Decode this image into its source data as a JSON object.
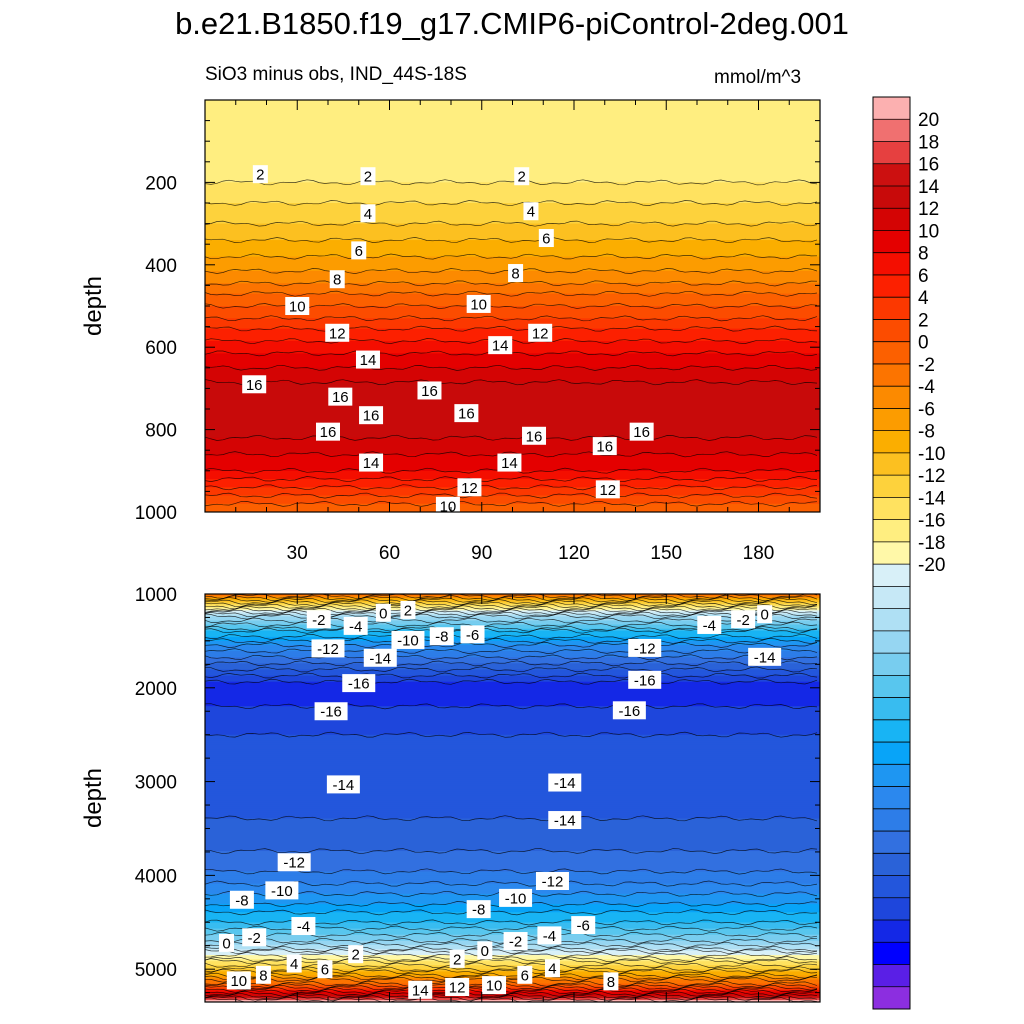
{
  "header": {
    "title": "b.e21.B1850.f19_g17.CMIP6-piControl-2deg.001",
    "subtitle": "SiO3 minus obs, IND_44S-18S",
    "units": "mmol/m^3"
  },
  "chart_data": [
    {
      "type": "contour",
      "panel": "upper",
      "ylabel": "depth",
      "xlim": [
        0,
        200
      ],
      "ylim": [
        0,
        1000
      ],
      "y_inverted": true,
      "x_ticks": [
        30,
        60,
        90,
        120,
        150,
        180
      ],
      "y_ticks": [
        200,
        400,
        600,
        800,
        1000
      ],
      "profile": [
        [
          0,
          1
        ],
        [
          150,
          1.5
        ],
        [
          200,
          2
        ],
        [
          300,
          4
        ],
        [
          400,
          6.5
        ],
        [
          500,
          10
        ],
        [
          600,
          13.5
        ],
        [
          700,
          16.5
        ],
        [
          760,
          17
        ],
        [
          820,
          16
        ],
        [
          900,
          14
        ],
        [
          960,
          11
        ],
        [
          1000,
          9
        ]
      ],
      "contour_labels": [
        {
          "x": 18,
          "y": 180,
          "text": "2"
        },
        {
          "x": 53,
          "y": 185,
          "text": "2"
        },
        {
          "x": 103,
          "y": 185,
          "text": "2"
        },
        {
          "x": 53,
          "y": 275,
          "text": "4"
        },
        {
          "x": 106,
          "y": 270,
          "text": "4"
        },
        {
          "x": 50,
          "y": 365,
          "text": "6"
        },
        {
          "x": 111,
          "y": 335,
          "text": "6"
        },
        {
          "x": 43,
          "y": 435,
          "text": "8"
        },
        {
          "x": 101,
          "y": 420,
          "text": "8"
        },
        {
          "x": 30,
          "y": 500,
          "text": "10"
        },
        {
          "x": 89,
          "y": 495,
          "text": "10"
        },
        {
          "x": 43,
          "y": 565,
          "text": "12"
        },
        {
          "x": 109,
          "y": 565,
          "text": "12"
        },
        {
          "x": 53,
          "y": 630,
          "text": "14"
        },
        {
          "x": 96,
          "y": 595,
          "text": "14"
        },
        {
          "x": 16,
          "y": 690,
          "text": "16"
        },
        {
          "x": 44,
          "y": 720,
          "text": "16"
        },
        {
          "x": 54,
          "y": 765,
          "text": "16"
        },
        {
          "x": 73,
          "y": 705,
          "text": "16"
        },
        {
          "x": 85,
          "y": 760,
          "text": "16"
        },
        {
          "x": 107,
          "y": 815,
          "text": "16"
        },
        {
          "x": 130,
          "y": 840,
          "text": "16"
        },
        {
          "x": 142,
          "y": 805,
          "text": "16"
        },
        {
          "x": 40,
          "y": 805,
          "text": "16"
        },
        {
          "x": 54,
          "y": 880,
          "text": "14"
        },
        {
          "x": 99,
          "y": 880,
          "text": "14"
        },
        {
          "x": 86,
          "y": 940,
          "text": "12"
        },
        {
          "x": 131,
          "y": 945,
          "text": "12"
        },
        {
          "x": 79,
          "y": 985,
          "text": "10"
        }
      ]
    },
    {
      "type": "contour",
      "panel": "lower",
      "ylabel": "depth",
      "xlim": [
        0,
        200
      ],
      "ylim": [
        1000,
        5350
      ],
      "y_inverted": true,
      "y_ticks": [
        1000,
        2000,
        3000,
        4000,
        5000
      ],
      "profile": [
        [
          1000,
          9
        ],
        [
          1100,
          3
        ],
        [
          1250,
          -3
        ],
        [
          1400,
          -7
        ],
        [
          1600,
          -11
        ],
        [
          1800,
          -14
        ],
        [
          2000,
          -17
        ],
        [
          2200,
          -16
        ],
        [
          2500,
          -15
        ],
        [
          2800,
          -15
        ],
        [
          3200,
          -14.5
        ],
        [
          3600,
          -13.5
        ],
        [
          3900,
          -12.5
        ],
        [
          4200,
          -10
        ],
        [
          4500,
          -7
        ],
        [
          4700,
          -4
        ],
        [
          4850,
          0
        ],
        [
          5000,
          4
        ],
        [
          5150,
          9
        ],
        [
          5250,
          14
        ],
        [
          5320,
          19
        ],
        [
          5350,
          21
        ]
      ],
      "contour_labels": [
        {
          "x": 37,
          "y": 1270,
          "text": "-2"
        },
        {
          "x": 49,
          "y": 1340,
          "text": "-4"
        },
        {
          "x": 58,
          "y": 1200,
          "text": "0"
        },
        {
          "x": 66,
          "y": 1170,
          "text": "2"
        },
        {
          "x": 66,
          "y": 1490,
          "text": "-10"
        },
        {
          "x": 77,
          "y": 1450,
          "text": "-8"
        },
        {
          "x": 87,
          "y": 1430,
          "text": "-6"
        },
        {
          "x": 40,
          "y": 1580,
          "text": "-12"
        },
        {
          "x": 57,
          "y": 1680,
          "text": "-14"
        },
        {
          "x": 50,
          "y": 1950,
          "text": "-16"
        },
        {
          "x": 41,
          "y": 2250,
          "text": "-16"
        },
        {
          "x": 143,
          "y": 1575,
          "text": "-12"
        },
        {
          "x": 143,
          "y": 1915,
          "text": "-16"
        },
        {
          "x": 164,
          "y": 1330,
          "text": "-4"
        },
        {
          "x": 175,
          "y": 1270,
          "text": "-2"
        },
        {
          "x": 182,
          "y": 1215,
          "text": "0"
        },
        {
          "x": 182,
          "y": 1670,
          "text": "-14"
        },
        {
          "x": 138,
          "y": 2240,
          "text": "-16"
        },
        {
          "x": 45,
          "y": 3030,
          "text": "-14"
        },
        {
          "x": 117,
          "y": 3010,
          "text": "-14"
        },
        {
          "x": 117,
          "y": 3410,
          "text": "-14"
        },
        {
          "x": 29,
          "y": 3860,
          "text": "-12"
        },
        {
          "x": 25,
          "y": 4160,
          "text": "-10"
        },
        {
          "x": 12,
          "y": 4260,
          "text": "-8"
        },
        {
          "x": 32,
          "y": 4540,
          "text": "-4"
        },
        {
          "x": 16,
          "y": 4660,
          "text": "-2"
        },
        {
          "x": 7,
          "y": 4720,
          "text": "0"
        },
        {
          "x": 113,
          "y": 4060,
          "text": "-12"
        },
        {
          "x": 101,
          "y": 4240,
          "text": "-10"
        },
        {
          "x": 89,
          "y": 4360,
          "text": "-8"
        },
        {
          "x": 123,
          "y": 4530,
          "text": "-6"
        },
        {
          "x": 112,
          "y": 4640,
          "text": "-4"
        },
        {
          "x": 101,
          "y": 4700,
          "text": "-2"
        },
        {
          "x": 91,
          "y": 4800,
          "text": "0"
        },
        {
          "x": 82,
          "y": 4890,
          "text": "2"
        },
        {
          "x": 49,
          "y": 4840,
          "text": "2"
        },
        {
          "x": 29,
          "y": 4940,
          "text": "4"
        },
        {
          "x": 39,
          "y": 5000,
          "text": "6"
        },
        {
          "x": 19,
          "y": 5060,
          "text": "8"
        },
        {
          "x": 11,
          "y": 5120,
          "text": "10"
        },
        {
          "x": 70,
          "y": 5220,
          "text": "14"
        },
        {
          "x": 82,
          "y": 5190,
          "text": "12"
        },
        {
          "x": 94,
          "y": 5170,
          "text": "10"
        },
        {
          "x": 104,
          "y": 5060,
          "text": "6"
        },
        {
          "x": 113,
          "y": 4990,
          "text": "4"
        },
        {
          "x": 132,
          "y": 5130,
          "text": "8"
        }
      ]
    }
  ],
  "colorbar": {
    "levels": [
      -20,
      -18,
      -16,
      -14,
      -12,
      -10,
      -8,
      -6,
      -4,
      -2,
      0,
      2,
      4,
      6,
      8,
      10,
      12,
      14,
      16,
      18,
      20
    ],
    "colors": [
      "#8c2ee0",
      "#5a1fe6",
      "#0000ff",
      "#1428e6",
      "#1e46dc",
      "#2356dc",
      "#2a62d8",
      "#3270e0",
      "#2d7de8",
      "#2b88ee",
      "#1e96f2",
      "#08a4f8",
      "#18b4f4",
      "#38bcf0",
      "#58c6ee",
      "#78cdef",
      "#96d6f2",
      "#afe0f4",
      "#c6e8f6",
      "#d8f0f8",
      "#fff8a8",
      "#ffee80",
      "#ffe260",
      "#fdd23c",
      "#fcc020",
      "#fbae00",
      "#fc9c00",
      "#fc8a00",
      "#fc7400",
      "#fc6000",
      "#fc4c00",
      "#fc3800",
      "#fc2000",
      "#f40e00",
      "#e40000",
      "#d40404",
      "#c80a0a",
      "#cc1010",
      "#e64040",
      "#f07070",
      "#fcb0b0"
    ],
    "tick_labels": [
      "20",
      "18",
      "16",
      "14",
      "12",
      "10",
      "8",
      "6",
      "4",
      "2",
      "0",
      "-2",
      "-4",
      "-6",
      "-8",
      "-10",
      "-12",
      "-14",
      "-16",
      "-18",
      "-20"
    ]
  }
}
